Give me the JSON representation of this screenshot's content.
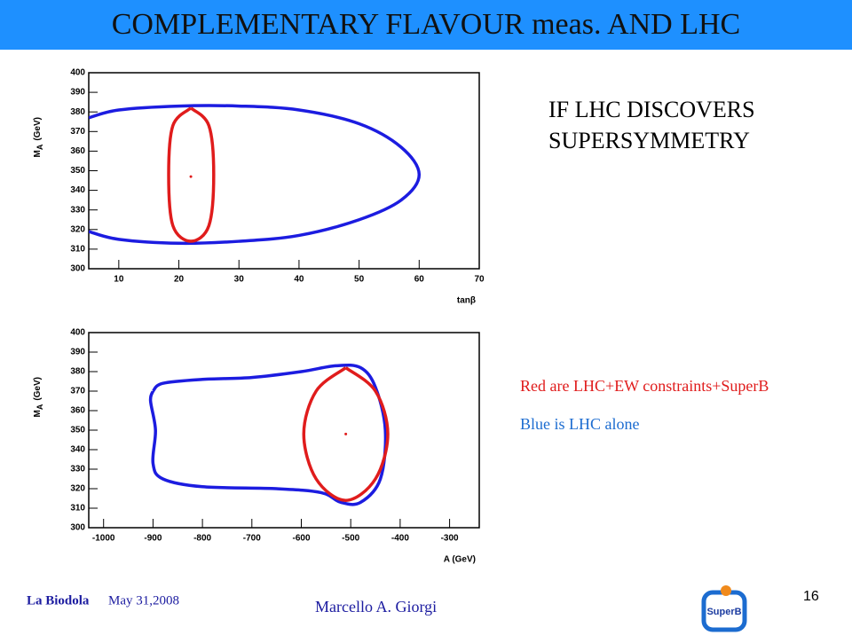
{
  "header": {
    "title": "COMPLEMENTARY FLAVOUR  meas. AND LHC"
  },
  "statement": [
    "IF LHC DISCOVERS",
    "SUPERSYMMETRY"
  ],
  "notes": [
    "Red are LHC+EW constraints+SuperB",
    "Blue is LHC alone"
  ],
  "footer": {
    "venue": "La Biodola",
    "date": "May 31,2008",
    "author": "Marcello A. Giorgi",
    "page": "16",
    "logo": "SuperB"
  },
  "chart_data": [
    {
      "type": "contour",
      "xlabel": "tanβ",
      "ylabel": {
        "symbol": "M",
        "subscript": "A",
        "unit": "(GeV)"
      },
      "xlim": [
        5,
        70
      ],
      "xticks": [
        10,
        20,
        30,
        40,
        50,
        60,
        70
      ],
      "ylim": [
        300,
        400
      ],
      "yticks": [
        300,
        310,
        320,
        330,
        340,
        350,
        360,
        370,
        380,
        390,
        400
      ],
      "series": [
        {
          "color": "#1c1ce0",
          "x": [
            5,
            10,
            20,
            30,
            40,
            50,
            57,
            60,
            57,
            50,
            40,
            30,
            20,
            10,
            5
          ],
          "y": [
            377,
            381,
            383,
            383,
            381,
            374,
            362,
            348,
            335,
            325,
            317,
            314,
            313,
            315,
            319
          ]
        },
        {
          "color": "#e01c1c",
          "x": [
            22,
            25,
            25.8,
            25,
            22,
            19,
            18.3,
            19,
            22
          ],
          "y": [
            382,
            373,
            348,
            322,
            314,
            322,
            348,
            373,
            382
          ]
        }
      ],
      "points": [
        {
          "color": "#e01c1c",
          "x": 22,
          "y": 347
        }
      ]
    },
    {
      "type": "contour",
      "xlabel": "A (GeV)",
      "ylabel": {
        "symbol": "M",
        "subscript": "A",
        "unit": "(GeV)"
      },
      "xlim": [
        -1030,
        -240
      ],
      "xticks": [
        -1000,
        -900,
        -800,
        -700,
        -600,
        -500,
        -400,
        -300
      ],
      "ylim": [
        300,
        400
      ],
      "yticks": [
        300,
        310,
        320,
        330,
        340,
        350,
        360,
        370,
        380,
        390,
        400
      ],
      "series": [
        {
          "color": "#1c1ce0",
          "x": [
            -900,
            -880,
            -800,
            -700,
            -600,
            -530,
            -480,
            -450,
            -430,
            -440,
            -480,
            -520,
            -560,
            -650,
            -800,
            -880,
            -900,
            -895,
            -905,
            -900
          ],
          "y": [
            370,
            374,
            376,
            377,
            380,
            383,
            382,
            372,
            350,
            325,
            313,
            313,
            318,
            320,
            321,
            325,
            333,
            350,
            365,
            370
          ]
        },
        {
          "color": "#e01c1c",
          "x": [
            -510,
            -450,
            -425,
            -450,
            -510,
            -570,
            -595,
            -570,
            -510
          ],
          "y": [
            382,
            370,
            348,
            325,
            314,
            325,
            348,
            370,
            382
          ]
        }
      ],
      "points": [
        {
          "color": "#e01c1c",
          "x": -510,
          "y": 348
        }
      ]
    }
  ]
}
